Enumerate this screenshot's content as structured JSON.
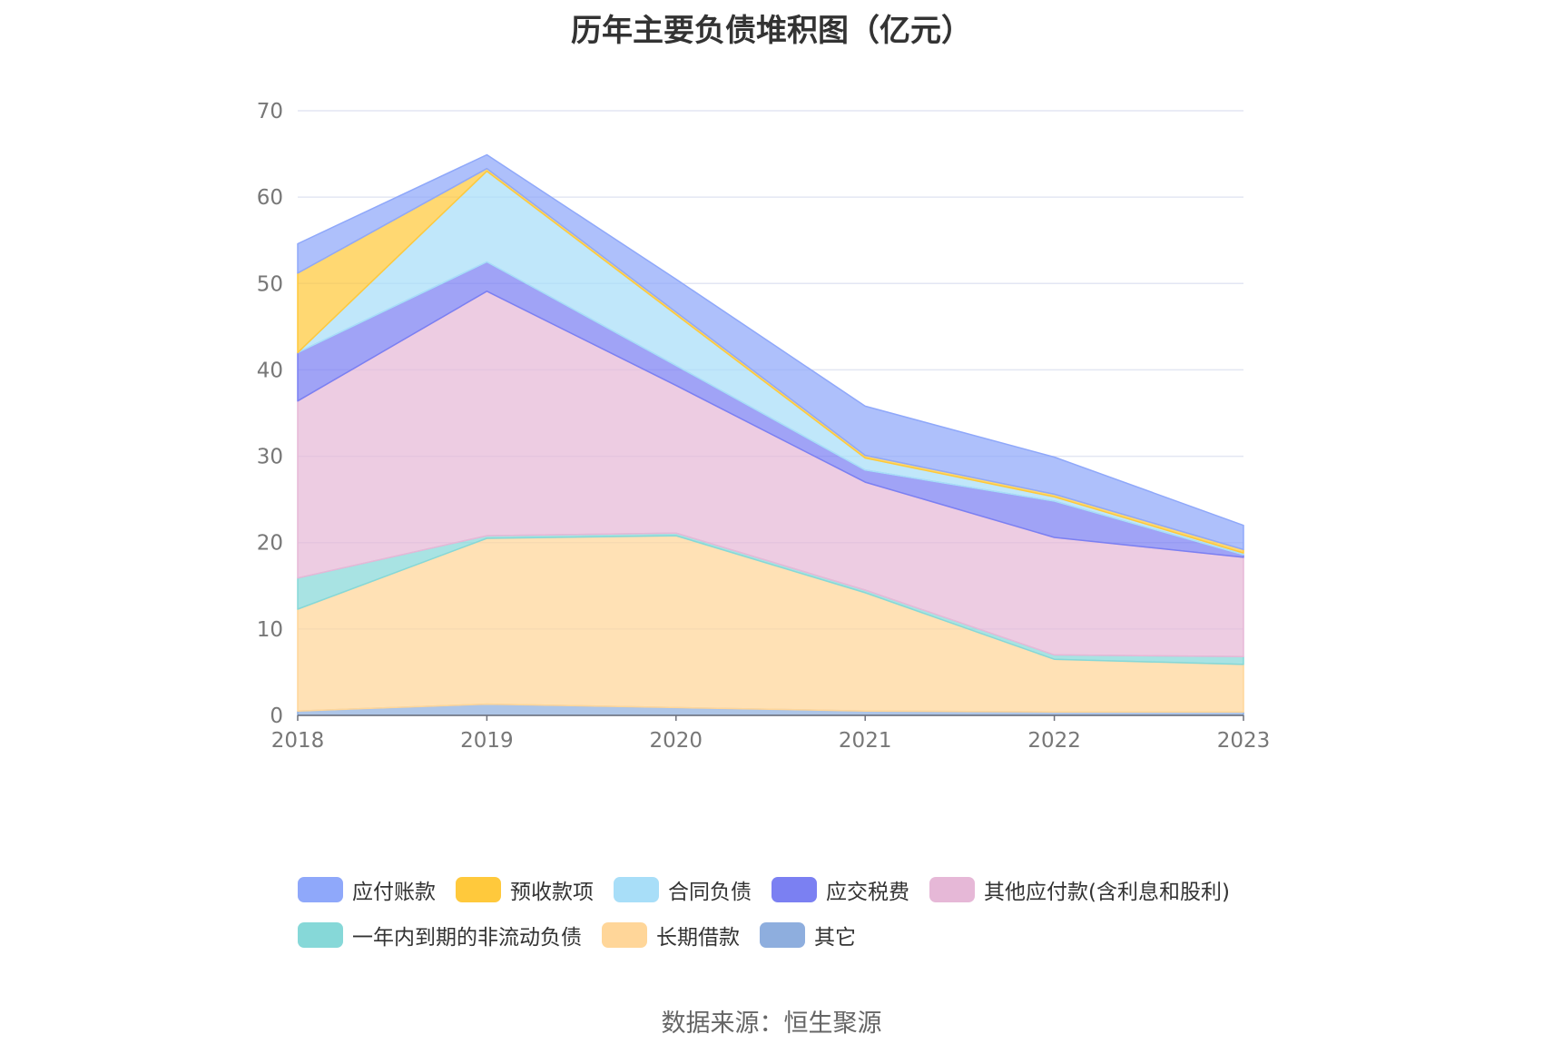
{
  "title": "历年主要负债堆积图（亿元）",
  "source": "数据来源：恒生聚源",
  "chart_data": {
    "type": "area",
    "stacked": true,
    "x": [
      "2018",
      "2019",
      "2020",
      "2021",
      "2022",
      "2023"
    ],
    "ylim": [
      0,
      70
    ],
    "yticks": [
      "0",
      "10",
      "20",
      "30",
      "40",
      "50",
      "60",
      "70"
    ],
    "grid": true,
    "legend_position": "bottom",
    "series": [
      {
        "name": "其它",
        "color": "#8eaede",
        "values": [
          0.5,
          1.3,
          0.9,
          0.5,
          0.4,
          0.4
        ]
      },
      {
        "name": "长期借款",
        "color": "#ffd699",
        "values": [
          11.8,
          19.2,
          19.9,
          13.7,
          6.1,
          5.5
        ]
      },
      {
        "name": "一年内到期的非流动负债",
        "color": "#86d8d8",
        "values": [
          3.6,
          0.3,
          0.3,
          0.3,
          0.5,
          0.9
        ]
      },
      {
        "name": "其他应付款(含利息和股利)",
        "color": "#e6b8d7",
        "values": [
          20.5,
          28.3,
          17.1,
          12.5,
          13.6,
          11.5
        ]
      },
      {
        "name": "应交税费",
        "color": "#7b80f2",
        "values": [
          5.6,
          3.4,
          2.3,
          1.4,
          4.2,
          0.3
        ]
      },
      {
        "name": "合同负债",
        "color": "#a8def8",
        "values": [
          0.0,
          10.5,
          5.9,
          1.4,
          0.5,
          0.2
        ]
      },
      {
        "name": "预收款项",
        "color": "#ffc93c",
        "values": [
          9.2,
          0.3,
          0.3,
          0.3,
          0.3,
          0.4
        ]
      },
      {
        "name": "应付账款",
        "color": "#8fa8fa",
        "values": [
          3.4,
          1.6,
          3.8,
          5.7,
          4.3,
          2.8
        ]
      }
    ]
  },
  "legend": [
    [
      {
        "name": "应付账款",
        "color": "#8fa8fa"
      },
      {
        "name": "预收款项",
        "color": "#ffc93c"
      },
      {
        "name": "合同负债",
        "color": "#a8def8"
      },
      {
        "name": "应交税费",
        "color": "#7b80f2"
      },
      {
        "name": "其他应付款(含利息和股利)",
        "color": "#e6b8d7"
      }
    ],
    [
      {
        "name": "一年内到期的非流动负债",
        "color": "#86d8d8"
      },
      {
        "name": "长期借款",
        "color": "#ffd699"
      },
      {
        "name": "其它",
        "color": "#8eaede"
      }
    ]
  ]
}
